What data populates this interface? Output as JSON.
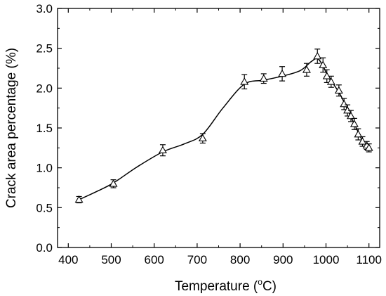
{
  "chart_data": {
    "type": "scatter",
    "xlabel": "Temperature (°C)",
    "xlabel_parts": [
      "Temperature (",
      "o",
      "C)"
    ],
    "ylabel": "Crack area percentage (%)",
    "xlim": [
      375,
      1125
    ],
    "ylim": [
      0.0,
      3.0
    ],
    "xticks": [
      400,
      500,
      600,
      700,
      800,
      900,
      1000,
      1100
    ],
    "xtick_labels": [
      "400",
      "500",
      "600",
      "700",
      "800",
      "900",
      "1000",
      "1100"
    ],
    "yticks": [
      0.0,
      0.5,
      1.0,
      1.5,
      2.0,
      2.5,
      3.0
    ],
    "ytick_labels": [
      "0.0",
      "0.5",
      "1.0",
      "1.5",
      "2.0",
      "2.5",
      "3.0"
    ],
    "grid": false,
    "marker": "open-triangle",
    "error_bars": true,
    "fit_line": "smooth",
    "series": [
      {
        "points": [
          {
            "x": 425,
            "y": 0.6,
            "err": 0.04
          },
          {
            "x": 505,
            "y": 0.8,
            "err": 0.05
          },
          {
            "x": 620,
            "y": 1.22,
            "err": 0.07
          },
          {
            "x": 713,
            "y": 1.37,
            "err": 0.06
          },
          {
            "x": 810,
            "y": 2.08,
            "err": 0.09
          },
          {
            "x": 855,
            "y": 2.12,
            "err": 0.06
          },
          {
            "x": 898,
            "y": 2.18,
            "err": 0.09
          },
          {
            "x": 955,
            "y": 2.23,
            "err": 0.08
          },
          {
            "x": 980,
            "y": 2.4,
            "err": 0.09
          },
          {
            "x": 993,
            "y": 2.29,
            "err": 0.09
          },
          {
            "x": 1002,
            "y": 2.15,
            "err": 0.08
          },
          {
            "x": 1012,
            "y": 2.08,
            "err": 0.07
          },
          {
            "x": 1030,
            "y": 1.97,
            "err": 0.07
          },
          {
            "x": 1042,
            "y": 1.8,
            "err": 0.07
          },
          {
            "x": 1050,
            "y": 1.72,
            "err": 0.07
          },
          {
            "x": 1058,
            "y": 1.65,
            "err": 0.07
          },
          {
            "x": 1066,
            "y": 1.55,
            "err": 0.07
          },
          {
            "x": 1075,
            "y": 1.42,
            "err": 0.07
          },
          {
            "x": 1085,
            "y": 1.33,
            "err": 0.06
          },
          {
            "x": 1095,
            "y": 1.28,
            "err": 0.05
          },
          {
            "x": 1100,
            "y": 1.25,
            "err": 0.05
          }
        ]
      }
    ],
    "curve": [
      [
        425,
        0.6
      ],
      [
        465,
        0.7
      ],
      [
        505,
        0.81
      ],
      [
        560,
        1.01
      ],
      [
        620,
        1.2
      ],
      [
        670,
        1.3
      ],
      [
        713,
        1.42
      ],
      [
        760,
        1.75
      ],
      [
        810,
        2.05
      ],
      [
        855,
        2.1
      ],
      [
        898,
        2.15
      ],
      [
        940,
        2.22
      ],
      [
        965,
        2.33
      ],
      [
        980,
        2.37
      ],
      [
        993,
        2.28
      ],
      [
        1005,
        2.14
      ],
      [
        1020,
        2.03
      ],
      [
        1035,
        1.9
      ],
      [
        1050,
        1.73
      ],
      [
        1066,
        1.55
      ],
      [
        1085,
        1.34
      ],
      [
        1100,
        1.25
      ]
    ]
  }
}
